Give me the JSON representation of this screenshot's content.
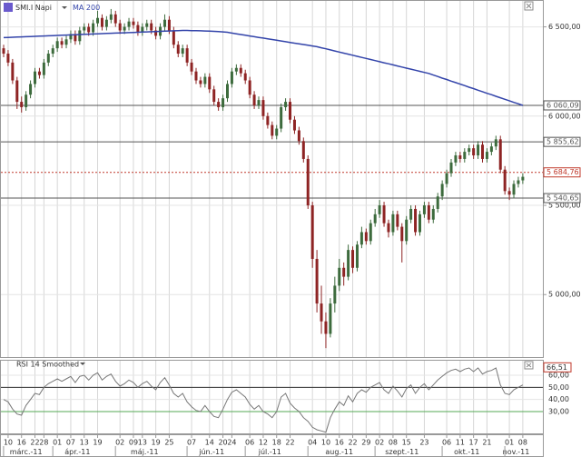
{
  "chart_data": {
    "type": "candlestick",
    "title": "SMI.I Napi",
    "up_color": "#3d6b3d",
    "down_color": "#8e2424",
    "grid": true,
    "categories": [
      null,
      "10",
      null,
      null,
      "16",
      null,
      null,
      "22",
      null,
      "28",
      null,
      null,
      "01",
      null,
      null,
      "07",
      null,
      null,
      "13",
      null,
      null,
      "19",
      null,
      null,
      null,
      null,
      "02",
      null,
      null,
      "09",
      null,
      "13",
      null,
      null,
      "19",
      null,
      null,
      "25",
      null,
      null,
      null,
      null,
      "07",
      null,
      null,
      null,
      "14",
      null,
      null,
      "20",
      null,
      "24",
      null,
      null,
      null,
      "06",
      null,
      null,
      "12",
      null,
      null,
      "18",
      null,
      null,
      "22",
      null,
      null,
      null,
      null,
      "04",
      null,
      null,
      "10",
      null,
      null,
      "16",
      null,
      null,
      "22",
      null,
      null,
      "29",
      null,
      null,
      "02",
      null,
      null,
      "08",
      null,
      null,
      "15",
      null,
      null,
      null,
      "23",
      null,
      null,
      null,
      null,
      "06",
      null,
      null,
      "11",
      null,
      null,
      "17",
      null,
      null,
      "21",
      null,
      null,
      null,
      null,
      "01",
      null,
      null,
      "08"
    ],
    "months": [
      {
        "label": "márc.-11",
        "first": 1
      },
      {
        "label": "ápr.-11",
        "first": 12
      },
      {
        "label": "máj.-11",
        "first": 26
      },
      {
        "label": "jún.-11",
        "first": 42
      },
      {
        "label": "júl.-11",
        "first": 55
      },
      {
        "label": "aug.-11",
        "first": 69
      },
      {
        "label": "szept.-11",
        "first": 84
      },
      {
        "label": "okt.-11",
        "first": 99
      },
      {
        "label": "nov.-11",
        "first": 113
      }
    ],
    "ohlc": [
      [
        6380,
        6400,
        6330,
        6350
      ],
      [
        6350,
        6370,
        6280,
        6300
      ],
      [
        6300,
        6320,
        6180,
        6200
      ],
      [
        6200,
        6220,
        6040,
        6080
      ],
      [
        6080,
        6110,
        6020,
        6050
      ],
      [
        6050,
        6140,
        6030,
        6120
      ],
      [
        6120,
        6200,
        6100,
        6180
      ],
      [
        6180,
        6270,
        6160,
        6250
      ],
      [
        6250,
        6270,
        6210,
        6230
      ],
      [
        6230,
        6320,
        6210,
        6300
      ],
      [
        6300,
        6370,
        6280,
        6350
      ],
      [
        6350,
        6400,
        6330,
        6380
      ],
      [
        6380,
        6440,
        6360,
        6420
      ],
      [
        6420,
        6440,
        6380,
        6400
      ],
      [
        6400,
        6450,
        6380,
        6430
      ],
      [
        6430,
        6480,
        6410,
        6460
      ],
      [
        6460,
        6480,
        6400,
        6420
      ],
      [
        6420,
        6500,
        6400,
        6480
      ],
      [
        6480,
        6520,
        6460,
        6500
      ],
      [
        6500,
        6520,
        6450,
        6470
      ],
      [
        6470,
        6540,
        6450,
        6520
      ],
      [
        6520,
        6590,
        6500,
        6550
      ],
      [
        6550,
        6570,
        6480,
        6500
      ],
      [
        6500,
        6560,
        6480,
        6540
      ],
      [
        6540,
        6600,
        6520,
        6570
      ],
      [
        6570,
        6590,
        6500,
        6520
      ],
      [
        6520,
        6540,
        6460,
        6480
      ],
      [
        6480,
        6520,
        6460,
        6500
      ],
      [
        6500,
        6550,
        6480,
        6530
      ],
      [
        6530,
        6550,
        6490,
        6510
      ],
      [
        6510,
        6530,
        6450,
        6470
      ],
      [
        6470,
        6520,
        6450,
        6500
      ],
      [
        6500,
        6540,
        6480,
        6520
      ],
      [
        6520,
        6540,
        6460,
        6480
      ],
      [
        6480,
        6500,
        6430,
        6450
      ],
      [
        6450,
        6520,
        6430,
        6500
      ],
      [
        6500,
        6570,
        6480,
        6540
      ],
      [
        6540,
        6560,
        6460,
        6480
      ],
      [
        6480,
        6500,
        6380,
        6400
      ],
      [
        6400,
        6420,
        6330,
        6350
      ],
      [
        6350,
        6400,
        6330,
        6380
      ],
      [
        6380,
        6400,
        6280,
        6300
      ],
      [
        6300,
        6320,
        6230,
        6250
      ],
      [
        6250,
        6270,
        6180,
        6200
      ],
      [
        6200,
        6220,
        6160,
        6180
      ],
      [
        6180,
        6240,
        6160,
        6220
      ],
      [
        6220,
        6240,
        6130,
        6150
      ],
      [
        6150,
        6170,
        6060,
        6080
      ],
      [
        6080,
        6100,
        6030,
        6050
      ],
      [
        6050,
        6120,
        6030,
        6100
      ],
      [
        6100,
        6200,
        6080,
        6180
      ],
      [
        6180,
        6270,
        6160,
        6250
      ],
      [
        6250,
        6290,
        6230,
        6270
      ],
      [
        6270,
        6290,
        6220,
        6240
      ],
      [
        6240,
        6260,
        6180,
        6200
      ],
      [
        6200,
        6220,
        6100,
        6120
      ],
      [
        6120,
        6140,
        6040,
        6060
      ],
      [
        6060,
        6110,
        6040,
        6090
      ],
      [
        6090,
        6110,
        5980,
        6000
      ],
      [
        6000,
        6020,
        5930,
        5950
      ],
      [
        5950,
        5970,
        5870,
        5890
      ],
      [
        5890,
        5950,
        5870,
        5930
      ],
      [
        5930,
        6070,
        5910,
        6050
      ],
      [
        6050,
        6100,
        6030,
        6080
      ],
      [
        6080,
        6100,
        5960,
        5980
      ],
      [
        5980,
        6000,
        5900,
        5920
      ],
      [
        5920,
        5940,
        5840,
        5860
      ],
      [
        5860,
        5880,
        5740,
        5760
      ],
      [
        5760,
        5780,
        5480,
        5500
      ],
      [
        5500,
        5520,
        5150,
        5200
      ],
      [
        5200,
        5250,
        4900,
        4950
      ],
      [
        4950,
        5050,
        4780,
        4850
      ],
      [
        4850,
        4900,
        4700,
        4780
      ],
      [
        4780,
        4980,
        4760,
        4950
      ],
      [
        4950,
        5100,
        4900,
        5050
      ],
      [
        5050,
        5200,
        5020,
        5150
      ],
      [
        5150,
        5180,
        5050,
        5100
      ],
      [
        5100,
        5280,
        5080,
        5250
      ],
      [
        5250,
        5270,
        5120,
        5150
      ],
      [
        5150,
        5300,
        5130,
        5280
      ],
      [
        5280,
        5380,
        5260,
        5350
      ],
      [
        5350,
        5370,
        5280,
        5300
      ],
      [
        5300,
        5420,
        5280,
        5400
      ],
      [
        5400,
        5480,
        5380,
        5450
      ],
      [
        5450,
        5530,
        5430,
        5500
      ],
      [
        5500,
        5520,
        5380,
        5400
      ],
      [
        5400,
        5420,
        5320,
        5350
      ],
      [
        5350,
        5470,
        5330,
        5450
      ],
      [
        5450,
        5470,
        5360,
        5380
      ],
      [
        5380,
        5400,
        5180,
        5300
      ],
      [
        5300,
        5440,
        5280,
        5420
      ],
      [
        5420,
        5500,
        5400,
        5480
      ],
      [
        5480,
        5500,
        5330,
        5350
      ],
      [
        5350,
        5470,
        5330,
        5450
      ],
      [
        5450,
        5520,
        5430,
        5500
      ],
      [
        5500,
        5520,
        5400,
        5420
      ],
      [
        5420,
        5500,
        5400,
        5480
      ],
      [
        5480,
        5570,
        5460,
        5550
      ],
      [
        5550,
        5640,
        5530,
        5620
      ],
      [
        5620,
        5700,
        5600,
        5680
      ],
      [
        5680,
        5760,
        5660,
        5740
      ],
      [
        5740,
        5800,
        5720,
        5780
      ],
      [
        5780,
        5800,
        5740,
        5760
      ],
      [
        5760,
        5820,
        5740,
        5800
      ],
      [
        5800,
        5840,
        5780,
        5820
      ],
      [
        5820,
        5840,
        5760,
        5780
      ],
      [
        5780,
        5860,
        5760,
        5840
      ],
      [
        5840,
        5860,
        5740,
        5760
      ],
      [
        5760,
        5820,
        5740,
        5800
      ],
      [
        5800,
        5850,
        5780,
        5830
      ],
      [
        5830,
        5890,
        5810,
        5870
      ],
      [
        5870,
        5890,
        5680,
        5700
      ],
      [
        5700,
        5720,
        5560,
        5580
      ],
      [
        5580,
        5600,
        5530,
        5560
      ],
      [
        5560,
        5640,
        5540,
        5620
      ],
      [
        5620,
        5660,
        5600,
        5640
      ],
      [
        5640,
        5680,
        5620,
        5660
      ]
    ],
    "ylim": [
      4650,
      6620
    ],
    "yticks": [
      {
        "value": 5000,
        "label": "5 000,00"
      },
      {
        "value": 5500,
        "label": "5 500,00"
      },
      {
        "value": 6000,
        "label": "6 000,00"
      },
      {
        "value": 6500,
        "label": "6 500,00"
      }
    ],
    "price_labels": [
      {
        "value": 6060.09,
        "label": "6 060,09",
        "color": "#555555",
        "dotted": false
      },
      {
        "value": 5855.62,
        "label": "5 855,62",
        "color": "#555555",
        "dotted": false
      },
      {
        "value": 5684.76,
        "label": "5 684,76",
        "color": "#c0392b",
        "dotted": true
      },
      {
        "value": 5540.65,
        "label": "5 540,65",
        "color": "#555555",
        "dotted": false
      }
    ],
    "overlay": {
      "name": "MA 200",
      "color": "#3344aa",
      "values": [
        6440,
        6441,
        6442,
        6443,
        6444,
        6445,
        6446,
        6447,
        6448,
        6449,
        6450,
        6451,
        6452,
        6453,
        6454,
        6455,
        6456,
        6457,
        6458,
        6459,
        6460,
        6461,
        6462,
        6463,
        6464,
        6465,
        6466,
        6467,
        6468,
        6469,
        6470,
        6471,
        6472,
        6473,
        6474,
        6475,
        6476,
        6477,
        6478,
        6479,
        6480,
        6480,
        6479,
        6479,
        6478,
        6477,
        6476,
        6475,
        6474,
        6472,
        6470,
        6465,
        6461,
        6457,
        6453,
        6449,
        6445,
        6441,
        6437,
        6433,
        6429,
        6425,
        6421,
        6417,
        6413,
        6409,
        6405,
        6401,
        6397,
        6393,
        6389,
        6383,
        6377,
        6371,
        6365,
        6359,
        6353,
        6347,
        6341,
        6335,
        6329,
        6323,
        6317,
        6311,
        6305,
        6299,
        6293,
        6287,
        6281,
        6275,
        6269,
        6263,
        6257,
        6251,
        6245,
        6239,
        6230,
        6222,
        6213,
        6205,
        6196,
        6188,
        6179,
        6171,
        6162,
        6154,
        6145,
        6137,
        6128,
        6120,
        6111,
        6103,
        6094,
        6086,
        6077,
        6069,
        6060
      ]
    },
    "rsi": {
      "name": "RSI 14 Smoothed",
      "color": "#777777",
      "ylim": [
        12,
        72
      ],
      "yticks": [
        {
          "value": 30,
          "label": "30,00"
        },
        {
          "value": 40,
          "label": "40,00"
        },
        {
          "value": 50,
          "label": "50,00"
        },
        {
          "value": 60,
          "label": "60,00"
        }
      ],
      "levels": [
        {
          "value": 50,
          "color": "#333333"
        },
        {
          "value": 30,
          "color": "#55aa55"
        }
      ],
      "marker": {
        "value": 66.51,
        "label": "66,51"
      },
      "values": [
        40,
        38,
        32,
        28,
        27,
        35,
        40,
        45,
        44,
        50,
        53,
        55,
        57,
        55,
        57,
        59,
        54,
        59,
        60,
        56,
        60,
        62,
        56,
        59,
        61,
        55,
        51,
        53,
        56,
        54,
        50,
        53,
        55,
        51,
        48,
        54,
        58,
        52,
        45,
        42,
        45,
        38,
        34,
        31,
        30,
        35,
        30,
        26,
        25,
        32,
        40,
        46,
        48,
        45,
        42,
        36,
        32,
        35,
        30,
        28,
        25,
        30,
        42,
        45,
        37,
        33,
        30,
        25,
        22,
        17,
        15,
        14,
        13,
        25,
        32,
        38,
        35,
        43,
        38,
        45,
        48,
        46,
        50,
        52,
        54,
        48,
        45,
        51,
        47,
        42,
        49,
        52,
        45,
        50,
        53,
        48,
        52,
        56,
        59,
        62,
        64,
        65,
        63,
        65,
        66,
        63,
        66,
        61,
        63,
        64,
        66,
        52,
        45,
        44,
        48,
        50,
        52
      ]
    }
  }
}
